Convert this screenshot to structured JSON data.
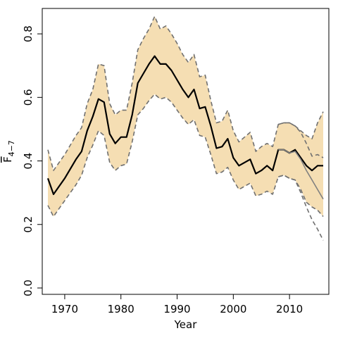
{
  "chart_data": {
    "type": "line",
    "title": "",
    "xlabel": "Year",
    "ylabel": {
      "main": "F",
      "subscript": "4−7"
    },
    "xlim": [
      1966,
      2017
    ],
    "ylim": [
      -0.02,
      0.88
    ],
    "xticks": [
      1970,
      1980,
      1990,
      2000,
      2010
    ],
    "yticks": [
      0.0,
      0.2,
      0.4,
      0.6,
      0.8
    ],
    "ytick_labels": [
      "0.0",
      "0.2",
      "0.4",
      "0.6",
      "0.8"
    ],
    "grid": false,
    "colors": {
      "band": "#f5deb3",
      "dashed": "#707070",
      "main_line": "#000000",
      "retro_line": "#808080"
    },
    "band": {
      "x": [
        1967,
        1968,
        1969,
        1970,
        1971,
        1972,
        1973,
        1974,
        1975,
        1976,
        1977,
        1978,
        1979,
        1980,
        1981,
        1982,
        1983,
        1984,
        1985,
        1986,
        1987,
        1988,
        1989,
        1990,
        1991,
        1992,
        1993,
        1994,
        1995,
        1996,
        1997,
        1998,
        1999,
        2000,
        2001,
        2002,
        2003,
        2004,
        2005,
        2006,
        2007,
        2008,
        2009,
        2010,
        2011,
        2012,
        2013,
        2014,
        2015,
        2016
      ],
      "lower": [
        0.26,
        0.225,
        0.25,
        0.275,
        0.3,
        0.325,
        0.355,
        0.41,
        0.45,
        0.495,
        0.48,
        0.395,
        0.37,
        0.385,
        0.39,
        0.46,
        0.545,
        0.565,
        0.59,
        0.61,
        0.595,
        0.6,
        0.585,
        0.56,
        0.535,
        0.515,
        0.53,
        0.48,
        0.475,
        0.42,
        0.36,
        0.365,
        0.38,
        0.34,
        0.31,
        0.32,
        0.33,
        0.29,
        0.295,
        0.305,
        0.295,
        0.35,
        0.355,
        0.345,
        0.34,
        0.31,
        0.27,
        0.255,
        0.245,
        0.225
      ],
      "upper": [
        0.435,
        0.37,
        0.395,
        0.42,
        0.45,
        0.48,
        0.505,
        0.58,
        0.625,
        0.705,
        0.7,
        0.58,
        0.545,
        0.56,
        0.56,
        0.645,
        0.75,
        0.785,
        0.815,
        0.855,
        0.815,
        0.825,
        0.8,
        0.77,
        0.735,
        0.71,
        0.735,
        0.665,
        0.67,
        0.59,
        0.52,
        0.525,
        0.56,
        0.495,
        0.46,
        0.475,
        0.49,
        0.43,
        0.445,
        0.455,
        0.445,
        0.515,
        0.52,
        0.52,
        0.51,
        0.495,
        0.48,
        0.47,
        0.52,
        0.555
      ]
    },
    "series": [
      {
        "role": "estimate",
        "x": [
          1967,
          1968,
          1969,
          1970,
          1971,
          1972,
          1973,
          1974,
          1975,
          1976,
          1977,
          1978,
          1979,
          1980,
          1981,
          1982,
          1983,
          1984,
          1985,
          1986,
          1987,
          1988,
          1989,
          1990,
          1991,
          1992,
          1993,
          1994,
          1995,
          1996,
          1997,
          1998,
          1999,
          2000,
          2001,
          2002,
          2003,
          2004,
          2005,
          2006,
          2007,
          2008,
          2009,
          2010,
          2011,
          2012,
          2013,
          2014,
          2015,
          2016
        ],
        "values": [
          0.345,
          0.295,
          0.32,
          0.345,
          0.375,
          0.405,
          0.43,
          0.495,
          0.54,
          0.595,
          0.585,
          0.485,
          0.455,
          0.475,
          0.475,
          0.545,
          0.645,
          0.675,
          0.705,
          0.73,
          0.705,
          0.705,
          0.685,
          0.655,
          0.625,
          0.6,
          0.625,
          0.565,
          0.57,
          0.51,
          0.44,
          0.445,
          0.47,
          0.41,
          0.385,
          0.395,
          0.405,
          0.36,
          0.37,
          0.385,
          0.37,
          0.435,
          0.435,
          0.425,
          0.435,
          0.41,
          0.385,
          0.37,
          0.385,
          0.385
        ]
      },
      {
        "role": "estimate-retro",
        "x": [
          2008,
          2009,
          2010,
          2011,
          2012,
          2013,
          2014,
          2015,
          2016
        ],
        "values": [
          0.435,
          0.435,
          0.425,
          0.43,
          0.405,
          0.37,
          0.34,
          0.31,
          0.28
        ]
      },
      {
        "role": "lower-bound-retro",
        "x": [
          2008,
          2009,
          2010,
          2011,
          2012,
          2013,
          2014,
          2015,
          2016
        ],
        "values": [
          0.35,
          0.355,
          0.345,
          0.34,
          0.3,
          0.255,
          0.215,
          0.185,
          0.15
        ]
      },
      {
        "role": "upper-bound-retro",
        "x": [
          2008,
          2009,
          2010,
          2011,
          2012,
          2013,
          2014,
          2015,
          2016
        ],
        "values": [
          0.515,
          0.52,
          0.52,
          0.51,
          0.49,
          0.455,
          0.415,
          0.42,
          0.41
        ]
      }
    ]
  }
}
